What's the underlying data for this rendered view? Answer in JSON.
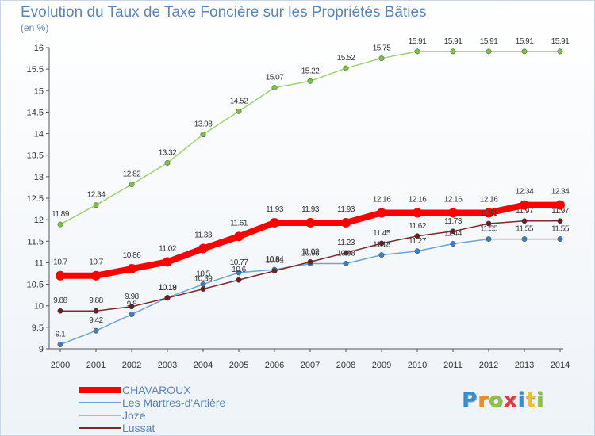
{
  "title": "Evolution du Taux de Taxe Foncière sur les Propriétés Bâties",
  "unit": "(en %)",
  "logo": {
    "text": "Proxiti",
    "letters": [
      {
        "ch": "P",
        "color": "#2f8fd8"
      },
      {
        "ch": "r",
        "color": "#f28c1e"
      },
      {
        "ch": "o",
        "color": "#8cc63f"
      },
      {
        "ch": "x",
        "color": "#e23a3a"
      },
      {
        "ch": "i",
        "color": "#2f8fd8"
      },
      {
        "ch": "t",
        "color": "#f2c21e"
      },
      {
        "ch": "i",
        "color": "#8cc63f"
      }
    ]
  },
  "chart_data": {
    "type": "line",
    "x": [
      "2000",
      "2001",
      "2002",
      "2003",
      "2004",
      "2005",
      "2006",
      "2007",
      "2008",
      "2009",
      "2010",
      "2011",
      "2012",
      "2013",
      "2014"
    ],
    "ylim": [
      9,
      16
    ],
    "yticks": [
      "9",
      "9.5",
      "10",
      "10.5",
      "11",
      "11.5",
      "12",
      "12.5",
      "13",
      "13.5",
      "14",
      "14.5",
      "15",
      "15.5",
      "16"
    ],
    "grid": false,
    "legend_position": "bottom-left",
    "series": [
      {
        "name": "CHAVAROUX",
        "color": "#ff0000",
        "marker": "#ff0000",
        "width": 8,
        "values": [
          10.7,
          10.7,
          10.86,
          11.02,
          11.33,
          11.61,
          11.93,
          11.93,
          11.93,
          12.16,
          12.16,
          12.16,
          12.16,
          12.34,
          12.34
        ],
        "labels": [
          "10.7",
          "10.7",
          "10.86",
          "11.02",
          "11.33",
          "11.61",
          "11.93",
          "11.93",
          "11.93",
          "12.16",
          "12.16",
          "12.16",
          "12.16",
          "12.34",
          "12.34"
        ]
      },
      {
        "name": "Les Martres-d'Artière",
        "color": "#6fa3d6",
        "marker": "#3a7fc8",
        "width": 1.5,
        "values": [
          9.1,
          9.42,
          9.8,
          10.19,
          10.5,
          10.77,
          10.84,
          10.98,
          10.98,
          11.18,
          11.27,
          11.44,
          11.55,
          11.55,
          11.55
        ],
        "labels": [
          "9.1",
          "9.42",
          "9.8",
          "10.19",
          "10.5",
          "10.77",
          "10.84",
          "10.98",
          "10.98",
          "11.18",
          "11.27",
          "11.44",
          "11.55",
          "11.55",
          "11.55"
        ]
      },
      {
        "name": "Joze",
        "color": "#9ed36a",
        "marker": "#7cc142",
        "width": 1.5,
        "values": [
          11.89,
          12.34,
          12.82,
          13.32,
          13.98,
          14.52,
          15.07,
          15.22,
          15.52,
          15.75,
          15.91,
          15.91,
          15.91,
          15.91,
          15.91
        ],
        "labels": [
          "11.89",
          "12.34",
          "12.82",
          "13.32",
          "13.98",
          "14.52",
          "15.07",
          "15.22",
          "15.52",
          "15.75",
          "15.91",
          "15.91",
          "15.91",
          "15.91",
          "15.91"
        ]
      },
      {
        "name": "Lussat",
        "color": "#7a2a2a",
        "marker": "#6b1f1f",
        "width": 1.5,
        "values": [
          9.88,
          9.88,
          9.98,
          10.18,
          10.39,
          10.6,
          10.81,
          11.02,
          11.23,
          11.45,
          11.62,
          11.73,
          11.91,
          11.97,
          11.97
        ],
        "labels": [
          "9.88",
          "9.88",
          "9.98",
          "10.18",
          "10.39",
          "10.6",
          "10.81",
          "11.02",
          "11.23",
          "11.45",
          "11.62",
          "11.73",
          "11.91",
          "11.97",
          "11.97"
        ]
      }
    ]
  }
}
